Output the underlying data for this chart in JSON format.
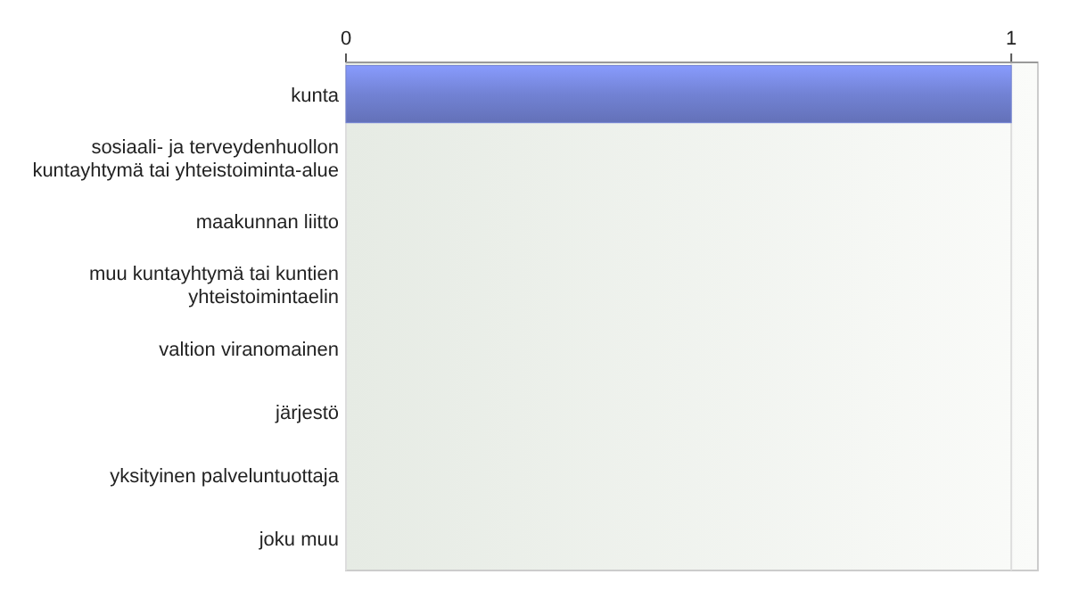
{
  "chart_data": {
    "type": "bar",
    "orientation": "horizontal",
    "categories": [
      "kunta",
      "sosiaali- ja terveydenhuollon kuntayhtymä tai yhteistoiminta-alue",
      "maakunnan liitto",
      "muu kuntayhtymä tai kuntien yhteistoimintaelin",
      "valtion viranomainen",
      "järjestö",
      "yksityinen palveluntuottaja",
      "joku muu"
    ],
    "values": [
      1,
      0,
      0,
      0,
      0,
      0,
      0,
      0
    ],
    "color": "#7282d4",
    "xlim": [
      0,
      1.04
    ],
    "xticks": [
      0,
      1
    ],
    "grid": "x"
  }
}
